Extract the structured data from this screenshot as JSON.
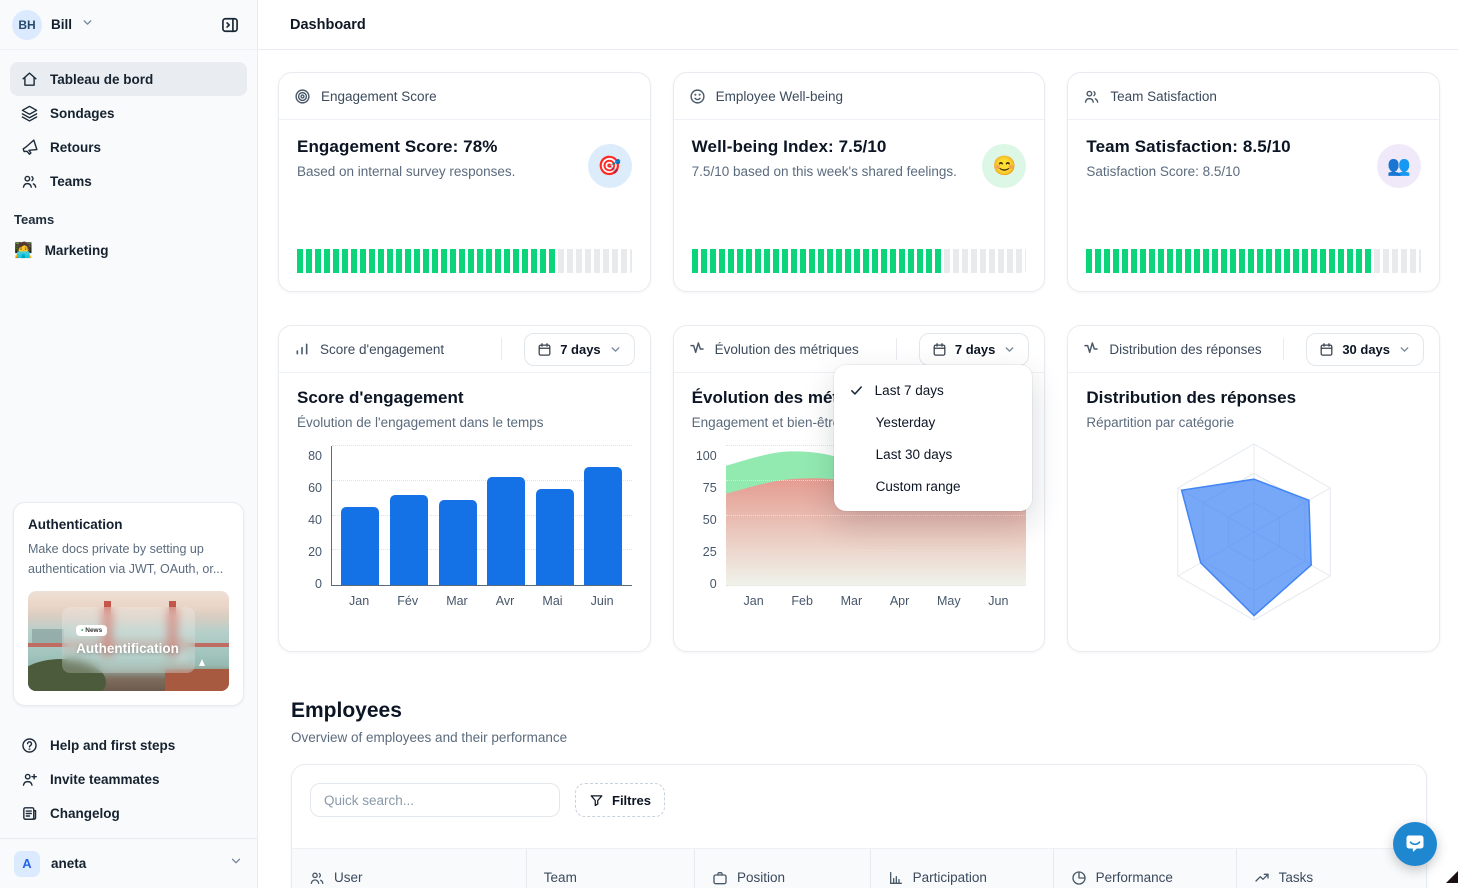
{
  "colors": {
    "progress_green": "#0bd47b",
    "progress_track": "#e8eaec",
    "bar_blue": "#1471e6",
    "area_green": "#92eab1",
    "area_pink": "#ec948c",
    "radar_blue": "#4285f4",
    "chat_blue": "#1f87cf"
  },
  "sidebar": {
    "user": {
      "initials": "BH",
      "name": "Bill"
    },
    "nav": [
      {
        "label": "Tableau de bord",
        "icon": "home-icon",
        "active": true
      },
      {
        "label": "Sondages",
        "icon": "layers-icon",
        "active": false
      },
      {
        "label": "Retours",
        "icon": "megaphone-icon",
        "active": false
      },
      {
        "label": "Teams",
        "icon": "users-icon",
        "active": false
      }
    ],
    "teams_section_label": "Teams",
    "teams": [
      {
        "emoji": "🧑‍💻",
        "label": "Marketing"
      }
    ],
    "promo": {
      "title": "Authentication",
      "body": "Make docs private by setting up authentication via JWT, OAuth, or...",
      "news_badge": "• News",
      "image_title": "Authentification"
    },
    "footer": [
      {
        "label": "Help and first steps",
        "icon": "help-icon"
      },
      {
        "label": "Invite teammates",
        "icon": "user-plus-icon"
      },
      {
        "label": "Changelog",
        "icon": "changelog-icon"
      }
    ],
    "workspace": {
      "initial": "A",
      "name": "aneta"
    }
  },
  "header": {
    "title": "Dashboard"
  },
  "stat_cards": [
    {
      "header": "Engagement Score",
      "title": "Engagement Score: 78%",
      "subtitle": "Based on internal survey responses.",
      "emoji": "🎯",
      "badge_bg": "#dcecfb",
      "progress_pct": 78
    },
    {
      "header": "Employee Well-being",
      "title": "Well-being Index: 7.5/10",
      "subtitle": "7.5/10 based on this week's shared feelings.",
      "emoji": "😊",
      "badge_bg": "#dcf7e6",
      "progress_pct": 75
    },
    {
      "header": "Team Satisfaction",
      "title": "Team Satisfaction: 8.5/10",
      "subtitle": "Satisfaction Score: 8.5/10",
      "emoji": "👥",
      "badge_bg": "#f0e9f9",
      "progress_pct": 85
    }
  ],
  "chart_cards": [
    {
      "header": "Score d'engagement",
      "range_label": "7 days",
      "title": "Score d'engagement",
      "subtitle": "Évolution de l'engagement dans le temps"
    },
    {
      "header": "Évolution des métriques",
      "range_label": "7 days",
      "title": "Évolution des métriques",
      "subtitle": "Engagement et bien-être"
    },
    {
      "header": "Distribution des réponses",
      "range_label": "30 days",
      "title": "Distribution des réponses",
      "subtitle": "Répartition par catégorie"
    }
  ],
  "dropdown": {
    "items": [
      {
        "label": "Last 7 days",
        "checked": true
      },
      {
        "label": "Yesterday",
        "checked": false
      },
      {
        "label": "Last 30 days",
        "checked": false
      },
      {
        "label": "Custom range",
        "checked": false
      }
    ]
  },
  "chart_data": [
    {
      "type": "bar",
      "title": "Score d'engagement",
      "categories": [
        "Jan",
        "Fév",
        "Mar",
        "Avr",
        "Mai",
        "Juin"
      ],
      "values": [
        45,
        52,
        49,
        62,
        55,
        68
      ],
      "yticks": [
        80,
        60,
        40,
        20,
        0
      ],
      "ylim": [
        0,
        80
      ],
      "grid": "dotted-horizontal"
    },
    {
      "type": "area",
      "title": "Évolution des métriques",
      "categories": [
        "Jan",
        "Feb",
        "Mar",
        "Apr",
        "May",
        "Jun"
      ],
      "series": [
        {
          "name": "engagement",
          "color": "#92eab1",
          "values": [
            86,
            96,
            90,
            65,
            64,
            66
          ]
        },
        {
          "name": "bien-être",
          "color": "#ec948c",
          "values": [
            66,
            76,
            75,
            62,
            61,
            63
          ]
        }
      ],
      "yticks": [
        100,
        75,
        50,
        25,
        0
      ],
      "ylim": [
        0,
        100
      ],
      "grid": "dotted-horizontal"
    },
    {
      "type": "radar",
      "title": "Distribution des réponses",
      "axes": 6,
      "values": [
        60,
        72,
        75,
        95,
        70,
        95
      ],
      "rings": 3,
      "ylim": [
        0,
        100
      ]
    }
  ],
  "employees": {
    "title": "Employees",
    "subtitle": "Overview of employees and their performance",
    "search_placeholder": "Quick search...",
    "filter_label": "Filtres",
    "columns": [
      {
        "label": "User",
        "icon": "users-icon"
      },
      {
        "label": "Team",
        "icon": ""
      },
      {
        "label": "Position",
        "icon": "briefcase-icon"
      },
      {
        "label": "Participation",
        "icon": "bar-chart-icon"
      },
      {
        "label": "Performance",
        "icon": "pie-chart-icon"
      },
      {
        "label": "Tasks",
        "icon": "trending-up-icon"
      }
    ]
  }
}
